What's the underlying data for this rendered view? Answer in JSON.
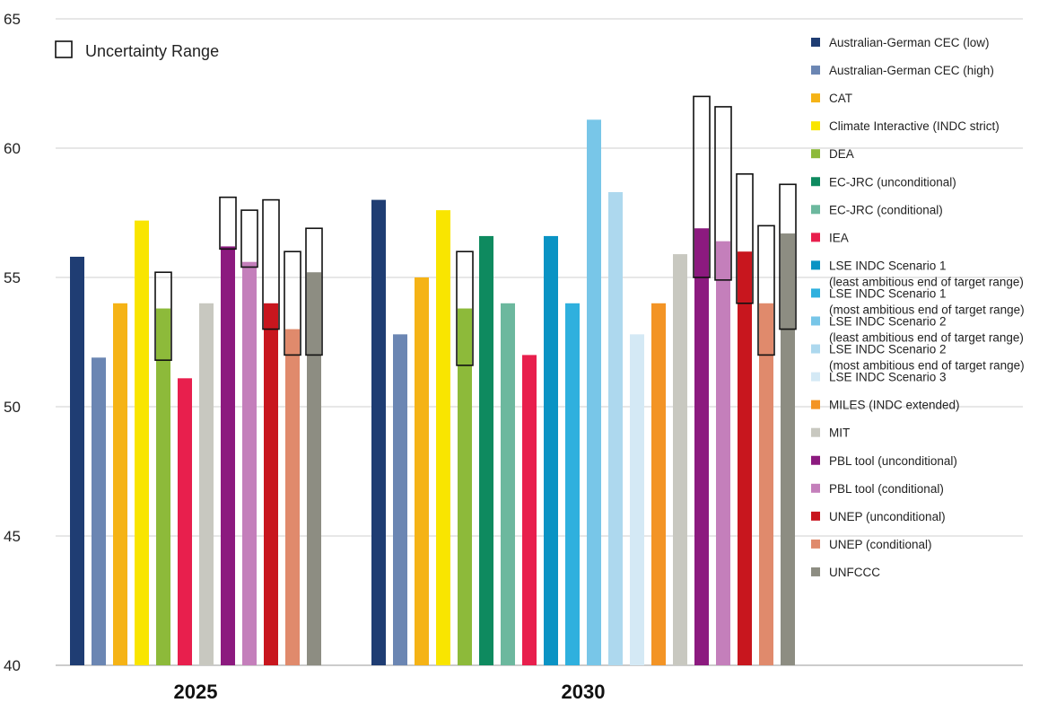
{
  "chart_data": {
    "type": "bar",
    "title": "",
    "xlabel": "",
    "ylabel": "",
    "ylim": [
      40,
      65
    ],
    "yticks": [
      40,
      45,
      50,
      55,
      60,
      65
    ],
    "grid": true,
    "legend_position": "right",
    "uncertainty_label": "Uncertainty Range",
    "groups": [
      {
        "label": "2025",
        "bars": [
          {
            "series": "Australian-German CEC (low)",
            "value": 55.8
          },
          {
            "series": "Australian-German CEC (high)",
            "value": 51.9
          },
          {
            "series": "CAT",
            "value": 54.0
          },
          {
            "series": "Climate Interactive (INDC strict)",
            "value": 57.2
          },
          {
            "series": "DEA",
            "value": 53.8,
            "range": [
              51.8,
              55.2
            ]
          },
          {
            "series": "IEA",
            "value": 51.1
          },
          {
            "series": "MIT",
            "value": 54.0
          },
          {
            "series": "PBL tool (unconditional)",
            "value": 56.2,
            "range": [
              56.1,
              58.1
            ]
          },
          {
            "series": "PBL tool (conditional)",
            "value": 55.6,
            "range": [
              55.4,
              57.6
            ]
          },
          {
            "series": "UNEP (unconditional)",
            "value": 54.0,
            "range": [
              53.0,
              58.0
            ]
          },
          {
            "series": "UNEP (conditional)",
            "value": 53.0,
            "range": [
              52.0,
              56.0
            ]
          },
          {
            "series": "UNFCCC",
            "value": 55.2,
            "range": [
              52.0,
              56.9
            ]
          }
        ]
      },
      {
        "label": "2030",
        "bars": [
          {
            "series": "Australian-German CEC (low)",
            "value": 58.0
          },
          {
            "series": "Australian-German CEC (high)",
            "value": 52.8
          },
          {
            "series": "CAT",
            "value": 55.0
          },
          {
            "series": "Climate Interactive (INDC strict)",
            "value": 57.6
          },
          {
            "series": "DEA",
            "value": 53.8,
            "range": [
              51.6,
              56.0
            ]
          },
          {
            "series": "EC-JRC (unconditional)",
            "value": 56.6
          },
          {
            "series": "EC-JRC (conditional)",
            "value": 54.0
          },
          {
            "series": "IEA",
            "value": 52.0
          },
          {
            "series": "LSE INDC Scenario 1 (least ambitious end of target range)",
            "value": 56.6
          },
          {
            "series": "LSE INDC Scenario 1 (most ambitious end of target range)",
            "value": 54.0
          },
          {
            "series": "LSE INDC Scenario 2 (least ambitious end of target range)",
            "value": 61.1
          },
          {
            "series": "LSE INDC Scenario 2 (most ambitious end of target range)",
            "value": 58.3
          },
          {
            "series": "LSE INDC Scenario 3",
            "value": 52.8
          },
          {
            "series": "MILES (INDC extended)",
            "value": 54.0
          },
          {
            "series": "MIT",
            "value": 55.9
          },
          {
            "series": "PBL tool (unconditional)",
            "value": 56.9,
            "range": [
              55.0,
              62.0
            ]
          },
          {
            "series": "PBL tool (conditional)",
            "value": 56.4,
            "range": [
              54.9,
              61.6
            ]
          },
          {
            "series": "UNEP (unconditional)",
            "value": 56.0,
            "range": [
              54.0,
              59.0
            ]
          },
          {
            "series": "UNEP (conditional)",
            "value": 54.0,
            "range": [
              52.0,
              57.0
            ]
          },
          {
            "series": "UNFCCC",
            "value": 56.7,
            "range": [
              53.0,
              58.6
            ]
          }
        ]
      }
    ],
    "legend": [
      {
        "name": "Australian-German CEC (low)",
        "lines": [
          "Australian-German CEC (low)"
        ],
        "color": "#1f3d73"
      },
      {
        "name": "Australian-German CEC (high)",
        "lines": [
          "Australian-German CEC (high)"
        ],
        "color": "#6b86b3"
      },
      {
        "name": "CAT",
        "lines": [
          "CAT"
        ],
        "color": "#f5b316"
      },
      {
        "name": "Climate Interactive (INDC strict)",
        "lines": [
          "Climate Interactive (INDC strict)"
        ],
        "color": "#f9e500"
      },
      {
        "name": "DEA",
        "lines": [
          "DEA"
        ],
        "color": "#8dba3a"
      },
      {
        "name": "EC-JRC (unconditional)",
        "lines": [
          "EC-JRC (unconditional)"
        ],
        "color": "#0e8a5f"
      },
      {
        "name": "EC-JRC (conditional)",
        "lines": [
          "EC-JRC (conditional)"
        ],
        "color": "#6cb89e"
      },
      {
        "name": "IEA",
        "lines": [
          "IEA"
        ],
        "color": "#e81f4d"
      },
      {
        "name": "LSE INDC Scenario 1 (least ambitious end of target range)",
        "lines": [
          "LSE INDC Scenario 1",
          "(least ambitious end of target range)"
        ],
        "color": "#0a93c4"
      },
      {
        "name": "LSE INDC Scenario 1 (most ambitious end of target range)",
        "lines": [
          "LSE INDC Scenario 1",
          "(most ambitious end of target range)"
        ],
        "color": "#2fb0de"
      },
      {
        "name": "LSE INDC Scenario 2 (least ambitious end of target range)",
        "lines": [
          "LSE INDC Scenario 2",
          "(least ambitious end of target range)"
        ],
        "color": "#78c6e8"
      },
      {
        "name": "LSE INDC Scenario 2 (most ambitious end of target range)",
        "lines": [
          "LSE INDC Scenario 2",
          "(most ambitious end of target range)"
        ],
        "color": "#add8ee"
      },
      {
        "name": "LSE INDC Scenario 3",
        "lines": [
          "LSE INDC Scenario 3"
        ],
        "color": "#d4e9f5"
      },
      {
        "name": "MILES (INDC extended)",
        "lines": [
          "MILES (INDC extended)"
        ],
        "color": "#f39425"
      },
      {
        "name": "MIT",
        "lines": [
          "MIT"
        ],
        "color": "#c8c8c0"
      },
      {
        "name": "PBL tool (unconditional)",
        "lines": [
          "PBL tool (unconditional)"
        ],
        "color": "#8c1a7f"
      },
      {
        "name": "PBL tool (conditional)",
        "lines": [
          "PBL tool (conditional)"
        ],
        "color": "#c47fbb"
      },
      {
        "name": "UNEP (unconditional)",
        "lines": [
          "UNEP (unconditional)"
        ],
        "color": "#c8161e"
      },
      {
        "name": "UNEP (conditional)",
        "lines": [
          "UNEP (conditional)"
        ],
        "color": "#e08a6c"
      },
      {
        "name": "UNFCCC",
        "lines": [
          "UNFCCC"
        ],
        "color": "#8d8d82"
      }
    ]
  }
}
